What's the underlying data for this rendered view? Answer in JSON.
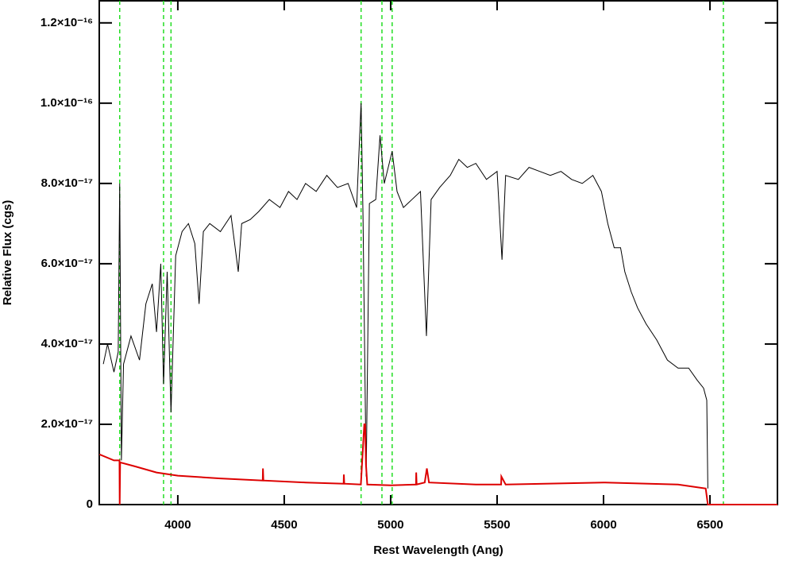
{
  "chart_data": {
    "type": "line",
    "xlabel": "Rest Wavelength (Ang)",
    "ylabel": "Relative Flux (cgs)",
    "xlim": [
      3631,
      6817
    ],
    "ylim": [
      0,
      1.255e-16
    ],
    "xticks": [
      4000,
      4500,
      5000,
      5500,
      6000,
      6500
    ],
    "yticks": [
      0,
      {
        "value": 2e-17,
        "label": "2.0×10⁻¹⁷"
      },
      {
        "value": 4e-17,
        "label": "4.0×10⁻¹⁷"
      },
      {
        "value": 6e-17,
        "label": "6.0×10⁻¹⁷"
      },
      {
        "value": 8e-17,
        "label": "8.0×10⁻¹⁷"
      },
      {
        "value": 1e-16,
        "label": "1.0×10⁻¹⁶"
      },
      {
        "value": 1.2e-16,
        "label": "1.2×10⁻¹⁶"
      }
    ],
    "vlines": {
      "color": "#22dd22",
      "x": [
        3727,
        3933,
        3968,
        4861,
        4959,
        5007,
        6563
      ]
    },
    "series": [
      {
        "color": "#000000",
        "x": [
          3650,
          3670,
          3700,
          3720,
          3727,
          3735,
          3745,
          3780,
          3820,
          3850,
          3880,
          3900,
          3920,
          3933,
          3950,
          3968,
          3990,
          4020,
          4050,
          4080,
          4100,
          4120,
          4150,
          4200,
          4250,
          4284,
          4300,
          4340,
          4380,
          4430,
          4480,
          4520,
          4560,
          4600,
          4650,
          4700,
          4750,
          4800,
          4840,
          4861,
          4870,
          4885,
          4900,
          4930,
          4950,
          4970,
          5007,
          5030,
          5060,
          5100,
          5140,
          5168,
          5190,
          5230,
          5280,
          5320,
          5360,
          5400,
          5450,
          5500,
          5523,
          5540,
          5600,
          5650,
          5700,
          5750,
          5800,
          5850,
          5900,
          5950,
          5990,
          6020,
          6050,
          6080,
          6100,
          6130,
          6160,
          6200,
          6250,
          6300,
          6350,
          6400,
          6440,
          6470,
          6485,
          6490
        ],
        "values": [
          3.5e-17,
          4e-17,
          3.3e-17,
          3.8e-17,
          8e-17,
          1.1e-17,
          3.5e-17,
          4.2e-17,
          3.6e-17,
          5e-17,
          5.5e-17,
          4.3e-17,
          6e-17,
          3e-17,
          5.8e-17,
          2.3e-17,
          6.2e-17,
          6.8e-17,
          7e-17,
          6.5e-17,
          5e-17,
          6.8e-17,
          7e-17,
          6.8e-17,
          7.2e-17,
          5.8e-17,
          7e-17,
          7.1e-17,
          7.3e-17,
          7.6e-17,
          7.4e-17,
          7.8e-17,
          7.6e-17,
          8e-17,
          7.8e-17,
          8.2e-17,
          7.9e-17,
          8e-17,
          7.4e-17,
          1e-16,
          7.2e-17,
          7e-18,
          7.5e-17,
          7.6e-17,
          9.2e-17,
          8e-17,
          8.8e-17,
          7.8e-17,
          7.4e-17,
          7.6e-17,
          7.8e-17,
          4.2e-17,
          7.6e-17,
          7.9e-17,
          8.2e-17,
          8.6e-17,
          8.4e-17,
          8.5e-17,
          8.1e-17,
          8.3e-17,
          6.1e-17,
          8.2e-17,
          8.1e-17,
          8.4e-17,
          8.3e-17,
          8.2e-17,
          8.3e-17,
          8.1e-17,
          8e-17,
          8.2e-17,
          7.8e-17,
          7e-17,
          6.4e-17,
          6.4e-17,
          5.8e-17,
          5.3e-17,
          4.9e-17,
          4.5e-17,
          4.1e-17,
          3.6e-17,
          3.4e-17,
          3.4e-17,
          3.1e-17,
          2.9e-17,
          2.6e-17,
          4e-18
        ]
      },
      {
        "color": "#dd0000",
        "x": [
          3632,
          3700,
          3726,
          3727,
          3729,
          3800,
          3900,
          4000,
          4200,
          4399,
          4400,
          4402,
          4600,
          4779,
          4780,
          4782,
          4860,
          4876,
          4880,
          4884,
          4890,
          5000,
          5119,
          5120,
          5122,
          5160,
          5170,
          5180,
          5400,
          5519,
          5520,
          5540,
          6000,
          6350,
          6480,
          6490,
          6817
        ],
        "values": [
          1.25e-17,
          1.1e-17,
          1.1e-17,
          0,
          1.05e-17,
          9.5e-18,
          8e-18,
          7.2e-18,
          6.5e-18,
          6e-18,
          9e-18,
          6e-18,
          5.5e-18,
          5.2e-18,
          7.5e-18,
          5.2e-18,
          5e-18,
          2e-17,
          2e-17,
          1e-17,
          5e-18,
          4.8e-18,
          5e-18,
          8e-18,
          5e-18,
          5.5e-18,
          9e-18,
          5.5e-18,
          5e-18,
          5e-18,
          7e-18,
          5e-18,
          5.5e-18,
          5e-18,
          4e-18,
          0,
          0
        ]
      }
    ]
  }
}
